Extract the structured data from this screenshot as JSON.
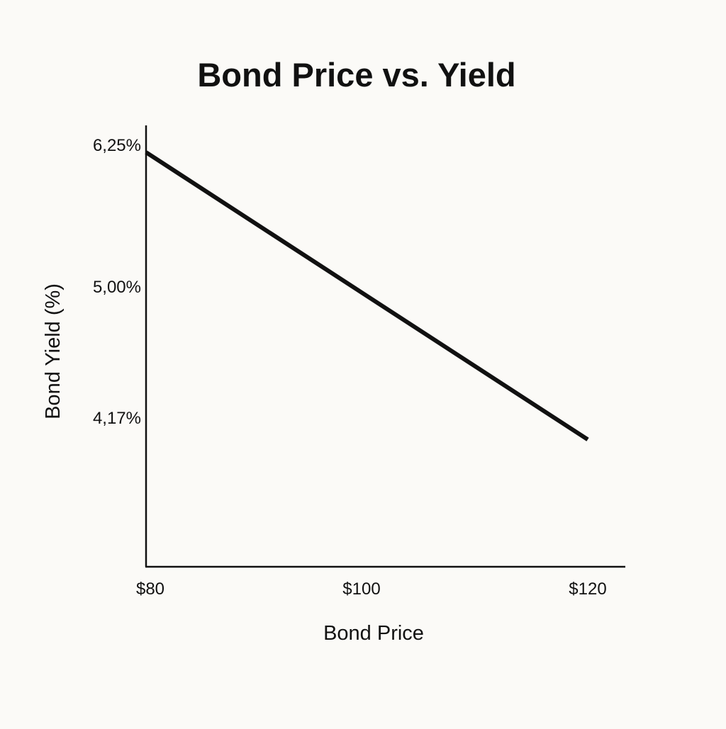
{
  "chart_data": {
    "type": "line",
    "title": "Bond Price vs. Yield",
    "xlabel": "Bond Price",
    "ylabel": "Bond Yield (%)",
    "x_tick_labels": [
      "$80",
      "$100",
      "$120"
    ],
    "x_tick_values": [
      80,
      100,
      120
    ],
    "y_tick_labels": [
      "6,25%",
      "5,00%",
      "4,17%"
    ],
    "y_tick_values": [
      6.25,
      5.0,
      4.17
    ],
    "series": [
      {
        "x": [
          80,
          120
        ],
        "y": [
          6.25,
          3.54
        ]
      }
    ],
    "grid": false,
    "legend": "none",
    "colors": {
      "line": "#111111",
      "axis": "#111111",
      "background": "#fbfaf7"
    }
  }
}
